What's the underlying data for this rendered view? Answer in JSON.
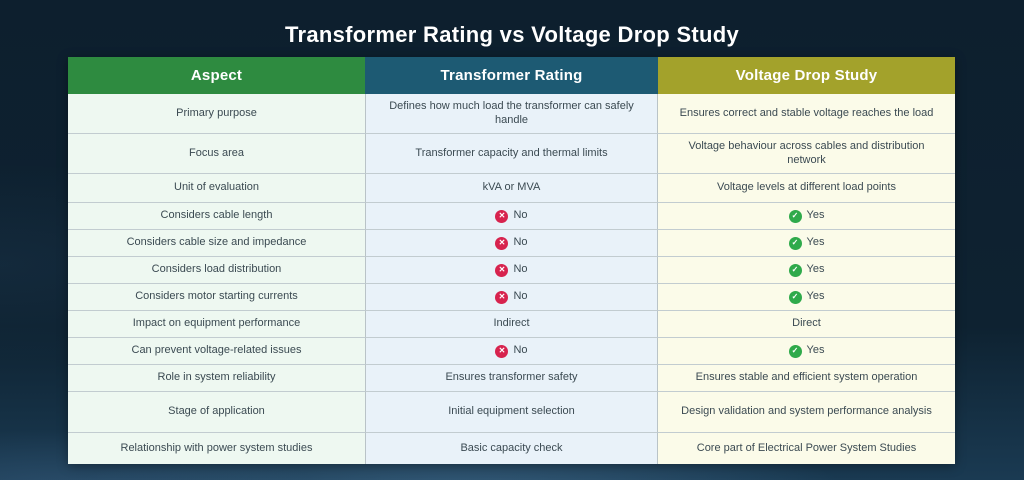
{
  "page": {
    "title": "Transformer Rating vs Voltage Drop Study"
  },
  "colors": {
    "background": "#0e2231",
    "header_aspect": "#2e8b40",
    "header_transformer": "#1d5a73",
    "header_voltage": "#a3a22b",
    "cell_aspect_bg": "#eef8f1",
    "cell_transformer_bg": "#e9f2f9",
    "cell_voltage_bg": "#fbfbe9",
    "yes_icon": "#2faa4b",
    "no_icon": "#d7234e",
    "cell_text": "#3b4a52",
    "title_text": "#ffffff"
  },
  "table": {
    "headers": [
      "Aspect",
      "Transformer Rating",
      "Voltage Drop Study"
    ],
    "rows": [
      {
        "aspect": "Primary purpose",
        "transformer": {
          "icon": null,
          "text": "Defines how much load the transformer can safely handle"
        },
        "voltage": {
          "icon": null,
          "text": "Ensures correct and stable voltage reaches the load"
        }
      },
      {
        "aspect": "Focus area",
        "transformer": {
          "icon": null,
          "text": "Transformer capacity and thermal limits"
        },
        "voltage": {
          "icon": null,
          "text": "Voltage behaviour across cables and distribution network"
        }
      },
      {
        "aspect": "Unit of evaluation",
        "transformer": {
          "icon": null,
          "text": "kVA or MVA"
        },
        "voltage": {
          "icon": null,
          "text": "Voltage levels at different load points"
        }
      },
      {
        "aspect": "Considers cable length",
        "transformer": {
          "icon": "cross",
          "text": "No"
        },
        "voltage": {
          "icon": "check",
          "text": "Yes"
        }
      },
      {
        "aspect": "Considers cable size and impedance",
        "transformer": {
          "icon": "cross",
          "text": "No"
        },
        "voltage": {
          "icon": "check",
          "text": "Yes"
        }
      },
      {
        "aspect": "Considers load distribution",
        "transformer": {
          "icon": "cross",
          "text": "No"
        },
        "voltage": {
          "icon": "check",
          "text": "Yes"
        }
      },
      {
        "aspect": "Considers motor starting currents",
        "transformer": {
          "icon": "cross",
          "text": "No"
        },
        "voltage": {
          "icon": "check",
          "text": "Yes"
        }
      },
      {
        "aspect": "Impact on equipment performance",
        "transformer": {
          "icon": null,
          "text": "Indirect"
        },
        "voltage": {
          "icon": null,
          "text": "Direct"
        }
      },
      {
        "aspect": "Can prevent voltage-related issues",
        "transformer": {
          "icon": "cross",
          "text": "No"
        },
        "voltage": {
          "icon": "check",
          "text": "Yes"
        }
      },
      {
        "aspect": "Role in system reliability",
        "transformer": {
          "icon": null,
          "text": "Ensures transformer safety"
        },
        "voltage": {
          "icon": null,
          "text": "Ensures stable and efficient system operation"
        }
      },
      {
        "aspect": "Stage of application",
        "transformer": {
          "icon": null,
          "text": "Initial equipment selection"
        },
        "voltage": {
          "icon": null,
          "text": "Design validation and system performance analysis"
        }
      },
      {
        "aspect": "Relationship with power system studies",
        "transformer": {
          "icon": null,
          "text": "Basic capacity check"
        },
        "voltage": {
          "icon": null,
          "text": "Core part of Electrical Power System Studies"
        }
      }
    ]
  },
  "icons": {
    "cross_glyph": "✕",
    "check_glyph": "✓"
  }
}
